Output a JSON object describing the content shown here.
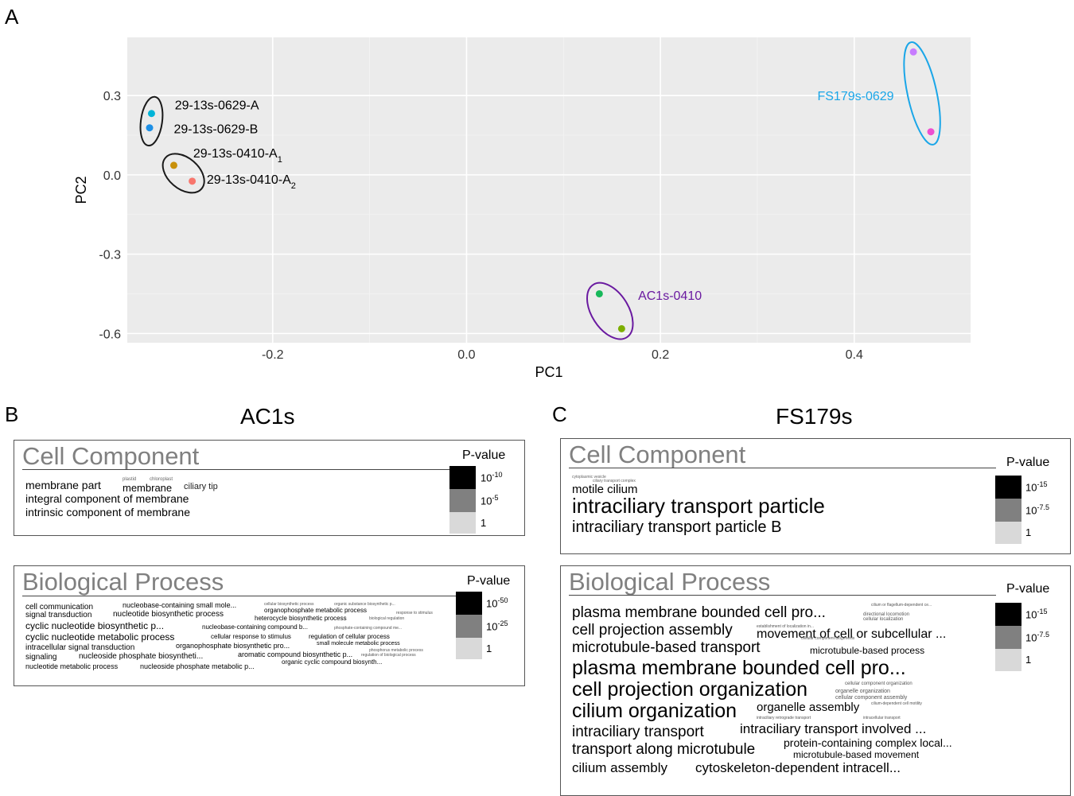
{
  "figure": {
    "panel_a": "A",
    "panel_b": "B",
    "panel_c": "C"
  },
  "chart_data": {
    "type": "scatter",
    "xlabel": "PC1",
    "ylabel": "PC2",
    "xlim": [
      -0.35,
      0.52
    ],
    "ylim": [
      -0.635,
      0.52
    ],
    "x_ticks": [
      -0.2,
      0.0,
      0.2,
      0.4
    ],
    "x_tick_labels": [
      "-0.2",
      "0.0",
      "0.2",
      "0.4"
    ],
    "y_ticks": [
      0.3,
      0.0,
      -0.3,
      -0.6
    ],
    "y_tick_labels": [
      "0.3",
      "0.0",
      "-0.3",
      "-0.6"
    ],
    "grid": true,
    "background": "#ebebeb",
    "points": [
      {
        "x": -0.325,
        "y": 0.232,
        "color": "#00b4d8"
      },
      {
        "x": -0.327,
        "y": 0.178,
        "color": "#1e90e6"
      },
      {
        "x": -0.302,
        "y": 0.036,
        "color": "#c8900a"
      },
      {
        "x": -0.283,
        "y": -0.024,
        "color": "#f8766d"
      },
      {
        "x": 0.137,
        "y": -0.45,
        "color": "#17b85a"
      },
      {
        "x": 0.16,
        "y": -0.582,
        "color": "#7cae00"
      },
      {
        "x": 0.461,
        "y": 0.465,
        "color": "#c77cff"
      },
      {
        "x": 0.479,
        "y": 0.163,
        "color": "#ee4fd0"
      }
    ],
    "groups": [
      {
        "cx": -0.325,
        "cy": 0.203,
        "rx": 0.011,
        "ry": 0.093,
        "color": "#1a1a1a"
      },
      {
        "cx": -0.292,
        "cy": 0.006,
        "rx": 0.016,
        "ry": 0.09,
        "color": "#1a1a1a"
      },
      {
        "cx": 0.148,
        "cy": -0.515,
        "rx": 0.019,
        "ry": 0.118,
        "color": "#6a1aa0"
      },
      {
        "cx": 0.47,
        "cy": 0.308,
        "rx": 0.015,
        "ry": 0.198,
        "color": "#1aa6e8"
      }
    ],
    "labels": [
      {
        "text": "29-13s-0629-A",
        "sub": "",
        "x": -0.301,
        "y": 0.248,
        "color": "#000000"
      },
      {
        "text": "29-13s-0629-B",
        "sub": "",
        "x": -0.302,
        "y": 0.158,
        "color": "#000000"
      },
      {
        "text": "29-13s-0410-A",
        "sub": "1",
        "x": -0.282,
        "y": 0.066,
        "color": "#000000"
      },
      {
        "text": "29-13s-0410-A",
        "sub": "2",
        "x": -0.268,
        "y": -0.033,
        "color": "#000000"
      },
      {
        "text": "AC1s-0410",
        "sub": "",
        "x": 0.177,
        "y": -0.472,
        "color": "#6a1aa0"
      },
      {
        "text": "FS179s-0629",
        "sub": "",
        "x": 0.362,
        "y": 0.282,
        "color": "#1aa6e8"
      }
    ]
  },
  "ac1s": {
    "title": "AC1s",
    "cell_component": {
      "title": "Cell Component",
      "pvalue_title": "P-value",
      "legend": [
        {
          "base": "10",
          "exp": "-10",
          "color": "#000000"
        },
        {
          "base": "10",
          "exp": "-5",
          "color": "#808080"
        },
        {
          "base": "1",
          "exp": "",
          "color": "#d9d9d9"
        }
      ],
      "terms": {
        "t1": "membrane part",
        "t2": "membrane",
        "t3": "ciliary tip",
        "t4": "integral component of membrane",
        "t5": "intrinsic component of membrane",
        "t6": "plastid",
        "t7": "chloroplast"
      }
    },
    "biological_process": {
      "title": "Biological Process",
      "pvalue_title": "P-value",
      "legend": [
        {
          "base": "10",
          "exp": "-50",
          "color": "#000000"
        },
        {
          "base": "10",
          "exp": "-25",
          "color": "#808080"
        },
        {
          "base": "1",
          "exp": "",
          "color": "#d9d9d9"
        }
      ],
      "terms": {
        "t1": "cell communication",
        "t2": "nucleobase-containing small mole...",
        "t3": "signal transduction",
        "t4": "nucleotide biosynthetic process",
        "t5": "organophosphate metabolic process",
        "t6": "cyclic nucleotide biosynthetic p...",
        "t7": "heterocycle biosynthetic process",
        "t8": "nucleobase-containing compound b...",
        "t9": "cyclic nucleotide metabolic process",
        "t10": "cellular response to stimulus",
        "t11": "regulation of cellular process",
        "t12": "intracellular signal transduction",
        "t13": "organophosphate biosynthetic pro...",
        "t14": "small molecule metabolic process",
        "t15": "signaling",
        "t16": "nucleoside phosphate biosyntheti...",
        "t17": "aromatic compound biosynthetic p...",
        "t18": "nucleotide metabolic process",
        "t19": "nucleoside phosphate metabolic p...",
        "t20": "organic cyclic compound biosynth...",
        "t21": "phosphate-containing compound me...",
        "t22": "phosphorus metabolic process",
        "t23": "biological regulation",
        "t24": "cellular biosynthetic process",
        "t25": "organic substance biosynthetic p...",
        "t26": "response to stimulus",
        "t27": "regulation of biological process"
      }
    }
  },
  "fs179s": {
    "title": "FS179s",
    "cell_component": {
      "title": "Cell Component",
      "pvalue_title": "P-value",
      "legend": [
        {
          "base": "10",
          "exp": "-15",
          "color": "#000000"
        },
        {
          "base": "10",
          "exp": "-7.5",
          "color": "#808080"
        },
        {
          "base": "1",
          "exp": "",
          "color": "#d9d9d9"
        }
      ],
      "terms": {
        "t1": "motile cilium",
        "t2": "intraciliary transport particle",
        "t3": "intraciliary transport particle B",
        "t4": "cytoplasmic vesicle",
        "t5": "ciliary transport complex"
      }
    },
    "biological_process": {
      "title": "Biological Process",
      "pvalue_title": "P-value",
      "legend": [
        {
          "base": "10",
          "exp": "-15",
          "color": "#000000"
        },
        {
          "base": "10",
          "exp": "-7.5",
          "color": "#808080"
        },
        {
          "base": "1",
          "exp": "",
          "color": "#d9d9d9"
        }
      ],
      "terms": {
        "t1": "plasma membrane bounded cell pro...",
        "t2": "cell projection assembly",
        "t3": "movement of cell or subcellular ...",
        "t4": "microtubule-based transport",
        "t5": "microtubule-based process",
        "t6": "plasma membrane bounded cell pro...",
        "t7": "cell projection organization",
        "t8": "cilium organization",
        "t9": "organelle assembly",
        "t10": "intraciliary transport",
        "t11": "intraciliary transport involved ...",
        "t12": "transport along microtubule",
        "t13": "protein-containing complex local...",
        "t14": "microtubule-based movement",
        "t15": "cilium assembly",
        "t16": "cytoskeleton-dependent intracell...",
        "t17": "cilium or flagellum-dependent ce...",
        "t18": "directional locomotion",
        "t19": "cellular localization",
        "t20": "cellular component organization",
        "t21": "organelle organization",
        "t22": "cellular component assembly",
        "t23": "cilium-dependent cell motility",
        "t24": "intraciliary retrograde transport",
        "t25": "intracellular transport",
        "t26": "cellular component biogenesis",
        "t27": "establishment of localization in..."
      }
    }
  }
}
